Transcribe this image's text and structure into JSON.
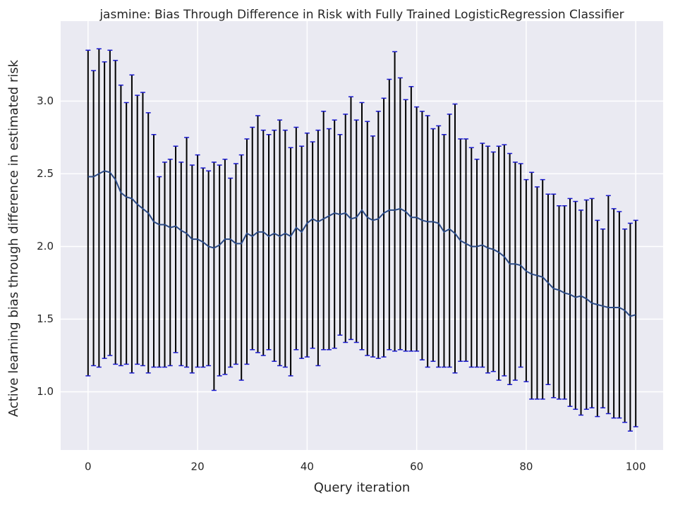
{
  "chart_data": {
    "type": "errorbar_line",
    "title": "jasmine: Bias Through Difference in Risk with Fully Trained LogisticRegression Classifier",
    "x_label": "Query iteration",
    "y_label": "Active learning bias through difference in estimated risk",
    "x": [
      0,
      1,
      2,
      3,
      4,
      5,
      6,
      7,
      8,
      9,
      10,
      11,
      12,
      13,
      14,
      15,
      16,
      17,
      18,
      19,
      20,
      21,
      22,
      23,
      24,
      25,
      26,
      27,
      28,
      29,
      30,
      31,
      32,
      33,
      34,
      35,
      36,
      37,
      38,
      39,
      40,
      41,
      42,
      43,
      44,
      45,
      46,
      47,
      48,
      49,
      50,
      51,
      52,
      53,
      54,
      55,
      56,
      57,
      58,
      59,
      60,
      61,
      62,
      63,
      64,
      65,
      66,
      67,
      68,
      69,
      70,
      71,
      72,
      73,
      74,
      75,
      76,
      77,
      78,
      79,
      80,
      81,
      82,
      83,
      84,
      85,
      86,
      87,
      88,
      89,
      90,
      91,
      92,
      93,
      94,
      95,
      96,
      97,
      98,
      99,
      100
    ],
    "series": [
      {
        "color": "#2b4a86",
        "error_color": "#000000",
        "cap_color": "#1a1ad0",
        "values": [
          2.48,
          2.48,
          2.5,
          2.52,
          2.51,
          2.46,
          2.37,
          2.34,
          2.33,
          2.29,
          2.26,
          2.23,
          2.17,
          2.15,
          2.15,
          2.13,
          2.14,
          2.11,
          2.09,
          2.05,
          2.05,
          2.03,
          2.0,
          1.99,
          2.01,
          2.05,
          2.05,
          2.02,
          2.02,
          2.09,
          2.07,
          2.1,
          2.1,
          2.07,
          2.09,
          2.07,
          2.09,
          2.07,
          2.13,
          2.1,
          2.16,
          2.19,
          2.17,
          2.19,
          2.21,
          2.23,
          2.22,
          2.23,
          2.19,
          2.2,
          2.25,
          2.2,
          2.18,
          2.19,
          2.23,
          2.25,
          2.25,
          2.26,
          2.24,
          2.2,
          2.2,
          2.18,
          2.17,
          2.17,
          2.16,
          2.1,
          2.12,
          2.09,
          2.04,
          2.02,
          2.0,
          2.0,
          2.01,
          1.99,
          1.98,
          1.96,
          1.93,
          1.88,
          1.88,
          1.87,
          1.83,
          1.81,
          1.8,
          1.79,
          1.75,
          1.71,
          1.7,
          1.68,
          1.67,
          1.65,
          1.66,
          1.64,
          1.61,
          1.6,
          1.59,
          1.58,
          1.58,
          1.58,
          1.56,
          1.52,
          1.53
        ],
        "upper": [
          3.35,
          3.21,
          3.36,
          3.27,
          3.35,
          3.28,
          3.11,
          2.99,
          3.18,
          3.04,
          3.06,
          2.92,
          2.77,
          2.48,
          2.58,
          2.6,
          2.69,
          2.58,
          2.75,
          2.56,
          2.63,
          2.54,
          2.52,
          2.58,
          2.56,
          2.6,
          2.47,
          2.57,
          2.63,
          2.74,
          2.82,
          2.9,
          2.8,
          2.77,
          2.8,
          2.87,
          2.8,
          2.68,
          2.82,
          2.69,
          2.78,
          2.72,
          2.8,
          2.93,
          2.81,
          2.87,
          2.77,
          2.91,
          3.03,
          2.87,
          2.99,
          2.86,
          2.76,
          2.93,
          3.02,
          3.15,
          3.34,
          3.16,
          3.01,
          3.1,
          2.96,
          2.93,
          2.9,
          2.81,
          2.83,
          2.77,
          2.91,
          2.98,
          2.74,
          2.74,
          2.68,
          2.6,
          2.71,
          2.69,
          2.65,
          2.69,
          2.7,
          2.64,
          2.58,
          2.57,
          2.46,
          2.51,
          2.41,
          2.46,
          2.36,
          2.36,
          2.28,
          2.28,
          2.33,
          2.31,
          2.25,
          2.32,
          2.33,
          2.18,
          2.12,
          2.35,
          2.26,
          2.24,
          2.12,
          2.16,
          2.18
        ],
        "lower": [
          1.11,
          1.18,
          1.17,
          1.23,
          1.25,
          1.19,
          1.18,
          1.19,
          1.13,
          1.19,
          1.18,
          1.13,
          1.17,
          1.17,
          1.17,
          1.18,
          1.27,
          1.18,
          1.17,
          1.13,
          1.17,
          1.17,
          1.18,
          1.01,
          1.11,
          1.12,
          1.17,
          1.19,
          1.08,
          1.19,
          1.29,
          1.27,
          1.25,
          1.29,
          1.21,
          1.18,
          1.17,
          1.11,
          1.29,
          1.23,
          1.24,
          1.3,
          1.18,
          1.29,
          1.29,
          1.3,
          1.39,
          1.34,
          1.36,
          1.34,
          1.29,
          1.25,
          1.24,
          1.23,
          1.24,
          1.29,
          1.28,
          1.29,
          1.28,
          1.28,
          1.28,
          1.22,
          1.17,
          1.21,
          1.17,
          1.17,
          1.17,
          1.13,
          1.21,
          1.21,
          1.17,
          1.17,
          1.17,
          1.13,
          1.14,
          1.08,
          1.11,
          1.05,
          1.08,
          1.17,
          1.07,
          0.95,
          0.95,
          0.95,
          1.05,
          0.96,
          0.95,
          0.95,
          0.9,
          0.88,
          0.84,
          0.88,
          0.89,
          0.83,
          0.89,
          0.85,
          0.82,
          0.82,
          0.79,
          0.73,
          0.76
        ]
      }
    ],
    "xlim": [
      -5,
      105
    ],
    "ylim": [
      0.6,
      3.55
    ],
    "xticks": [
      0,
      20,
      40,
      60,
      80,
      100
    ],
    "yticks": [
      {
        "value": 1,
        "label": "1.0"
      },
      1.5,
      {
        "value": 2,
        "label": "2.0"
      },
      2.5,
      {
        "value": 3,
        "label": "3.0"
      }
    ],
    "grid": true,
    "background": "#eaeaf2"
  }
}
